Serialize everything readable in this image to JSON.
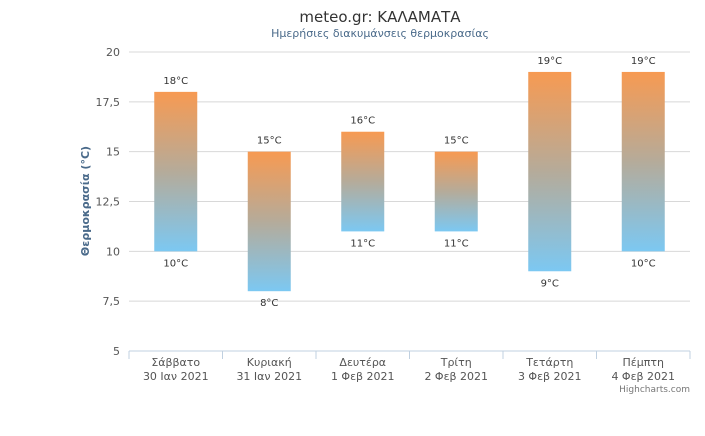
{
  "chart_data": {
    "type": "bar",
    "subtype": "columnrange",
    "title": "meteo.gr: ΚΑΛΑΜΑΤΑ",
    "subtitle": "Ημερήσιες διακυμάνσεις θερμοκρασίας",
    "ylabel": "Θερμοκρασία (°C)",
    "ylim": [
      5,
      20
    ],
    "yticks": [
      "5",
      "7,5",
      "10",
      "12,5",
      "15",
      "17,5",
      "20"
    ],
    "grid": true,
    "categories": [
      {
        "day": "Σάββατο",
        "date": "30 Ιαν 2021"
      },
      {
        "day": "Κυριακή",
        "date": "31 Ιαν 2021"
      },
      {
        "day": "Δευτέρα",
        "date": "1 Φεβ 2021"
      },
      {
        "day": "Τρίτη",
        "date": "2 Φεβ 2021"
      },
      {
        "day": "Τετάρτη",
        "date": "3 Φεβ 2021"
      },
      {
        "day": "Πέμπτη",
        "date": "4 Φεβ 2021"
      }
    ],
    "low": [
      10,
      8,
      11,
      11,
      9,
      10
    ],
    "high": [
      18,
      15,
      16,
      15,
      19,
      19
    ],
    "low_labels": [
      "10°C",
      "8°C",
      "11°C",
      "11°C",
      "9°C",
      "10°C"
    ],
    "high_labels": [
      "18°C",
      "15°C",
      "16°C",
      "15°C",
      "19°C",
      "19°C"
    ],
    "colors": {
      "warm": "#f79a52",
      "mid": "#b5ab9a",
      "cool": "#7cc8f2",
      "grid": "#d8d8d8",
      "axis": "#c0d0e0"
    }
  },
  "credits": "Highcharts.com"
}
